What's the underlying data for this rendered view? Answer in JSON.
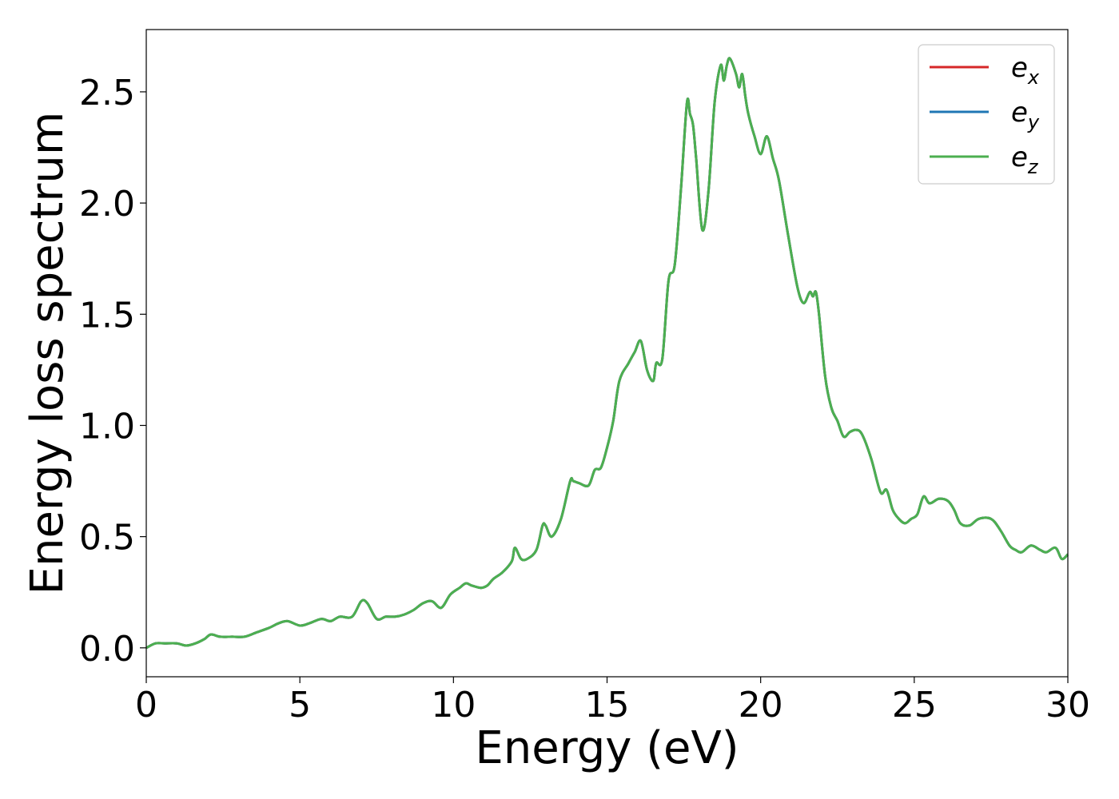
{
  "chart_data": {
    "type": "line",
    "xlabel": "Energy (eV)",
    "ylabel": "Energy loss spectrum",
    "xlim": [
      0,
      30
    ],
    "ylim": [
      -0.13,
      2.78
    ],
    "xticks": [
      0,
      5,
      10,
      15,
      20,
      25,
      30
    ],
    "xtick_labels": [
      "0",
      "5",
      "10",
      "15",
      "20",
      "25",
      "30"
    ],
    "yticks": [
      0.0,
      0.5,
      1.0,
      1.5,
      2.0,
      2.5
    ],
    "ytick_labels": [
      "0.0",
      "0.5",
      "1.0",
      "1.5",
      "2.0",
      "2.5"
    ],
    "grid": false,
    "legend_position": "top-right",
    "legend": [
      {
        "base": "e",
        "sub": "x",
        "color": "#d62728"
      },
      {
        "base": "e",
        "sub": "y",
        "color": "#1f77b4"
      },
      {
        "base": "e",
        "sub": "z",
        "color": "#4caf50"
      }
    ],
    "x": [
      0,
      0.3,
      0.6,
      1.0,
      1.3,
      1.6,
      1.9,
      2.1,
      2.4,
      2.8,
      3.2,
      3.6,
      4.0,
      4.3,
      4.6,
      5.0,
      5.3,
      5.7,
      6.0,
      6.3,
      6.7,
      7.0,
      7.2,
      7.5,
      7.8,
      8.1,
      8.4,
      8.7,
      9.0,
      9.3,
      9.6,
      9.9,
      10.2,
      10.4,
      10.6,
      10.9,
      11.1,
      11.3,
      11.6,
      11.9,
      12.0,
      12.2,
      12.4,
      12.7,
      12.9,
      13.0,
      13.2,
      13.5,
      13.8,
      13.9,
      14.1,
      14.4,
      14.6,
      14.8,
      15.0,
      15.2,
      15.4,
      15.7,
      15.9,
      16.1,
      16.3,
      16.5,
      16.6,
      16.8,
      17.0,
      17.2,
      17.4,
      17.6,
      17.7,
      17.8,
      17.9,
      18.1,
      18.3,
      18.5,
      18.7,
      18.8,
      18.9,
      19.0,
      19.2,
      19.3,
      19.4,
      19.5,
      19.6,
      19.8,
      20.0,
      20.2,
      20.4,
      20.6,
      20.9,
      21.2,
      21.4,
      21.6,
      21.7,
      21.8,
      21.9,
      22.1,
      22.3,
      22.5,
      22.7,
      22.9,
      23.1,
      23.3,
      23.6,
      23.9,
      24.1,
      24.3,
      24.5,
      24.7,
      24.9,
      25.1,
      25.3,
      25.5,
      25.8,
      26.1,
      26.3,
      26.5,
      26.8,
      27.1,
      27.5,
      27.8,
      28.1,
      28.3,
      28.5,
      28.8,
      29.1,
      29.3,
      29.6,
      29.8,
      30.0
    ],
    "series": [
      {
        "label_index": 0,
        "values": [
          0.0,
          0.02,
          0.02,
          0.02,
          0.01,
          0.02,
          0.04,
          0.06,
          0.05,
          0.05,
          0.05,
          0.07,
          0.09,
          0.11,
          0.12,
          0.1,
          0.11,
          0.13,
          0.12,
          0.14,
          0.14,
          0.21,
          0.2,
          0.13,
          0.14,
          0.14,
          0.15,
          0.17,
          0.2,
          0.21,
          0.18,
          0.24,
          0.27,
          0.29,
          0.28,
          0.27,
          0.28,
          0.31,
          0.34,
          0.39,
          0.45,
          0.4,
          0.4,
          0.44,
          0.55,
          0.55,
          0.5,
          0.58,
          0.75,
          0.75,
          0.74,
          0.73,
          0.8,
          0.81,
          0.9,
          1.02,
          1.2,
          1.28,
          1.33,
          1.38,
          1.25,
          1.2,
          1.28,
          1.3,
          1.65,
          1.72,
          2.05,
          2.45,
          2.4,
          2.35,
          2.2,
          1.88,
          2.05,
          2.45,
          2.62,
          2.55,
          2.62,
          2.65,
          2.58,
          2.52,
          2.58,
          2.48,
          2.4,
          2.3,
          2.22,
          2.3,
          2.2,
          2.1,
          1.85,
          1.62,
          1.55,
          1.6,
          1.58,
          1.6,
          1.5,
          1.22,
          1.08,
          1.02,
          0.95,
          0.97,
          0.98,
          0.96,
          0.85,
          0.7,
          0.71,
          0.62,
          0.58,
          0.56,
          0.58,
          0.6,
          0.68,
          0.65,
          0.67,
          0.66,
          0.62,
          0.56,
          0.55,
          0.58,
          0.58,
          0.53,
          0.46,
          0.44,
          0.43,
          0.46,
          0.44,
          0.43,
          0.45,
          0.4,
          0.42
        ]
      },
      {
        "label_index": 1,
        "values": [
          0.0,
          0.02,
          0.02,
          0.02,
          0.01,
          0.02,
          0.04,
          0.06,
          0.05,
          0.05,
          0.05,
          0.07,
          0.09,
          0.11,
          0.12,
          0.1,
          0.11,
          0.13,
          0.12,
          0.14,
          0.14,
          0.21,
          0.2,
          0.13,
          0.14,
          0.14,
          0.15,
          0.17,
          0.2,
          0.21,
          0.18,
          0.24,
          0.27,
          0.29,
          0.28,
          0.27,
          0.28,
          0.31,
          0.34,
          0.39,
          0.45,
          0.4,
          0.4,
          0.44,
          0.55,
          0.55,
          0.5,
          0.58,
          0.75,
          0.75,
          0.74,
          0.73,
          0.8,
          0.81,
          0.9,
          1.02,
          1.2,
          1.28,
          1.33,
          1.38,
          1.25,
          1.2,
          1.28,
          1.3,
          1.65,
          1.72,
          2.05,
          2.45,
          2.4,
          2.35,
          2.2,
          1.88,
          2.05,
          2.45,
          2.62,
          2.55,
          2.62,
          2.65,
          2.58,
          2.52,
          2.58,
          2.48,
          2.4,
          2.3,
          2.22,
          2.3,
          2.2,
          2.1,
          1.85,
          1.62,
          1.55,
          1.6,
          1.58,
          1.6,
          1.5,
          1.22,
          1.08,
          1.02,
          0.95,
          0.97,
          0.98,
          0.96,
          0.85,
          0.7,
          0.71,
          0.62,
          0.58,
          0.56,
          0.58,
          0.6,
          0.68,
          0.65,
          0.67,
          0.66,
          0.62,
          0.56,
          0.55,
          0.58,
          0.58,
          0.53,
          0.46,
          0.44,
          0.43,
          0.46,
          0.44,
          0.43,
          0.45,
          0.4,
          0.42
        ]
      },
      {
        "label_index": 2,
        "values": [
          0.0,
          0.02,
          0.02,
          0.02,
          0.01,
          0.02,
          0.04,
          0.06,
          0.05,
          0.05,
          0.05,
          0.07,
          0.09,
          0.11,
          0.12,
          0.1,
          0.11,
          0.13,
          0.12,
          0.14,
          0.14,
          0.21,
          0.2,
          0.13,
          0.14,
          0.14,
          0.15,
          0.17,
          0.2,
          0.21,
          0.18,
          0.24,
          0.27,
          0.29,
          0.28,
          0.27,
          0.28,
          0.31,
          0.34,
          0.39,
          0.45,
          0.4,
          0.4,
          0.44,
          0.55,
          0.55,
          0.5,
          0.58,
          0.75,
          0.75,
          0.74,
          0.73,
          0.8,
          0.81,
          0.9,
          1.02,
          1.2,
          1.28,
          1.33,
          1.38,
          1.25,
          1.2,
          1.28,
          1.3,
          1.65,
          1.72,
          2.05,
          2.45,
          2.4,
          2.35,
          2.2,
          1.88,
          2.05,
          2.45,
          2.62,
          2.55,
          2.62,
          2.65,
          2.58,
          2.52,
          2.58,
          2.48,
          2.4,
          2.3,
          2.22,
          2.3,
          2.2,
          2.1,
          1.85,
          1.62,
          1.55,
          1.6,
          1.58,
          1.6,
          1.5,
          1.22,
          1.08,
          1.02,
          0.95,
          0.97,
          0.98,
          0.96,
          0.85,
          0.7,
          0.71,
          0.62,
          0.58,
          0.56,
          0.58,
          0.6,
          0.68,
          0.65,
          0.67,
          0.66,
          0.62,
          0.56,
          0.55,
          0.58,
          0.58,
          0.53,
          0.46,
          0.44,
          0.43,
          0.46,
          0.44,
          0.43,
          0.45,
          0.4,
          0.42
        ]
      }
    ]
  }
}
